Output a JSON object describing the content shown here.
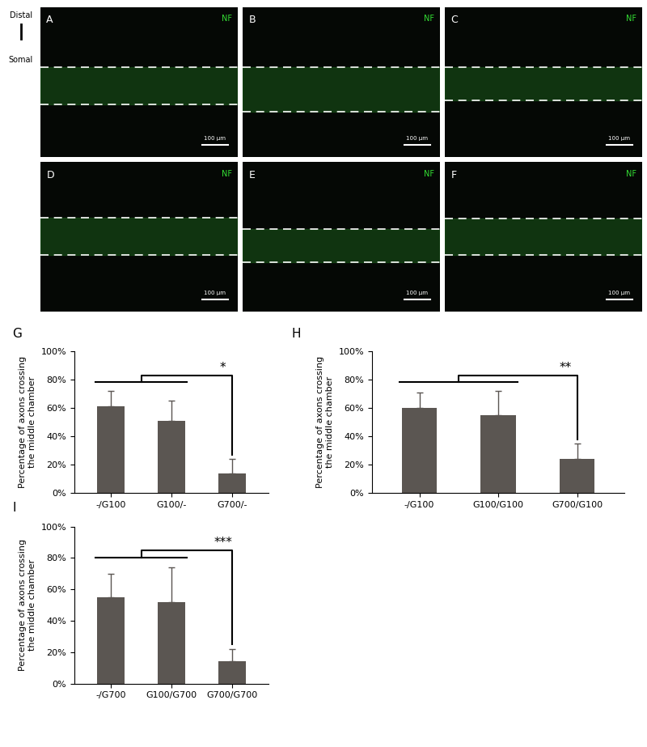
{
  "axis_arrow": {
    "top": "Distal",
    "bottom": "Somal"
  },
  "images": [
    {
      "panel": "A",
      "stain": "NF",
      "scale_bar": "100 μm"
    },
    {
      "panel": "B",
      "stain": "NF",
      "scale_bar": "100 μm"
    },
    {
      "panel": "C",
      "stain": "NF",
      "scale_bar": "100 μm"
    },
    {
      "panel": "D",
      "stain": "NF",
      "scale_bar": "100 μm"
    },
    {
      "panel": "E",
      "stain": "NF",
      "scale_bar": "100 μm"
    },
    {
      "panel": "F",
      "stain": "NF",
      "scale_bar": "100 μm"
    }
  ],
  "chart_data": [
    {
      "type": "bar",
      "panel": "G",
      "y_label": "Percentage of axons crossing\nthe middle chamber",
      "categories": [
        "-/G100",
        "G100/-",
        "G700/-"
      ],
      "values": [
        61,
        51,
        14
      ],
      "errors": [
        11,
        14,
        10
      ],
      "color": "#5b5652",
      "ylim": [
        0,
        100
      ],
      "yticks": [
        {
          "value": 0,
          "label": "0%"
        },
        {
          "value": 20,
          "label": "20%"
        },
        {
          "value": 40,
          "label": "40%"
        },
        {
          "value": 60,
          "label": "60%"
        },
        {
          "value": 80,
          "label": "80%"
        },
        {
          "value": 100,
          "label": "100%"
        }
      ],
      "significance": {
        "label": "*",
        "groups": [
          0,
          1
        ],
        "versus": 2
      }
    },
    {
      "type": "bar",
      "panel": "H",
      "y_label": "Percentage of axons crossing\nthe middle chamber",
      "categories": [
        "-/G100",
        "G100/G100",
        "G700/G100"
      ],
      "values": [
        60,
        55,
        24
      ],
      "errors": [
        11,
        17,
        11
      ],
      "color": "#5b5652",
      "ylim": [
        0,
        100
      ],
      "yticks": [
        {
          "value": 0,
          "label": "0%"
        },
        {
          "value": 20,
          "label": "20%"
        },
        {
          "value": 40,
          "label": "40%"
        },
        {
          "value": 60,
          "label": "60%"
        },
        {
          "value": 80,
          "label": "80%"
        },
        {
          "value": 100,
          "label": "100%"
        }
      ],
      "significance": {
        "label": "**",
        "groups": [
          0,
          1
        ],
        "versus": 2
      }
    },
    {
      "type": "bar",
      "panel": "I",
      "y_label": "Percentage of axons crossing\nthe middle chamber",
      "categories": [
        "-/G700",
        "G100/G700",
        "G700/G700"
      ],
      "values": [
        55,
        52,
        14
      ],
      "errors": [
        15,
        22,
        8
      ],
      "color": "#5b5652",
      "ylim": [
        0,
        100
      ],
      "yticks": [
        {
          "value": 0,
          "label": "0%"
        },
        {
          "value": 20,
          "label": "20%"
        },
        {
          "value": 40,
          "label": "40%"
        },
        {
          "value": 60,
          "label": "60%"
        },
        {
          "value": 80,
          "label": "80%"
        },
        {
          "value": 100,
          "label": "100%"
        }
      ],
      "significance": {
        "label": "***",
        "groups": [
          0,
          1
        ],
        "versus": 2
      }
    }
  ]
}
